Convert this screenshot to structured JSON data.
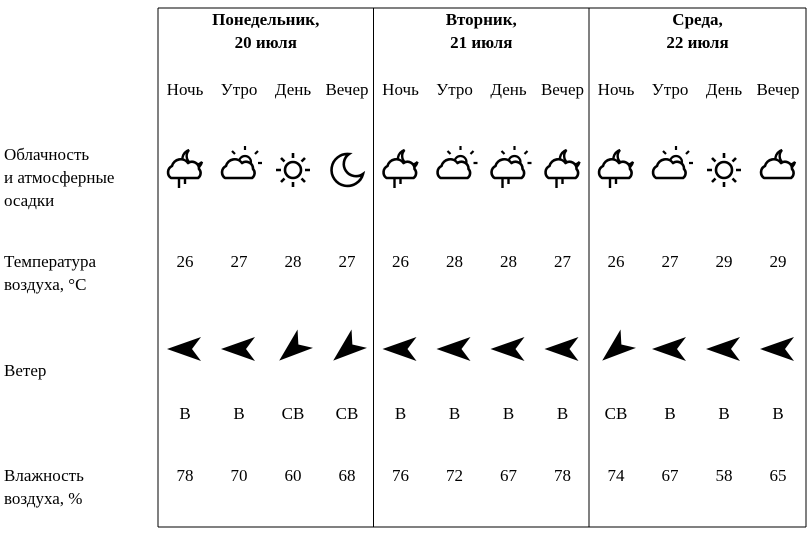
{
  "row_labels": [
    [
      "Облачность",
      "и атмосферные",
      "осадки"
    ],
    [
      "Температура",
      "воздуха, °C"
    ],
    [
      "Ветер"
    ],
    [
      "Влажность",
      "воздуха, %"
    ]
  ],
  "days": [
    {
      "name": "Понедельник,",
      "date": "20 июля",
      "times": [
        "Ночь",
        "Утро",
        "День",
        "Вечер"
      ],
      "temperature": [
        "26",
        "27",
        "28",
        "27"
      ],
      "wind": [
        "В",
        "В",
        "СВ",
        "СВ"
      ],
      "humidity": [
        "78",
        "70",
        "60",
        "68"
      ]
    },
    {
      "name": "Вторник,",
      "date": "21 июля",
      "times": [
        "Ночь",
        "Утро",
        "День",
        "Вечер"
      ],
      "temperature": [
        "26",
        "28",
        "28",
        "27"
      ],
      "wind": [
        "В",
        "В",
        "В",
        "В"
      ],
      "humidity": [
        "76",
        "72",
        "67",
        "78"
      ]
    },
    {
      "name": "Среда,",
      "date": "22 июля",
      "times": [
        "Ночь",
        "Утро",
        "День",
        "Вечер"
      ],
      "temperature": [
        "26",
        "27",
        "29",
        "29"
      ],
      "wind": [
        "СВ",
        "В",
        "В",
        "В"
      ],
      "humidity": [
        "74",
        "67",
        "58",
        "65"
      ]
    }
  ]
}
